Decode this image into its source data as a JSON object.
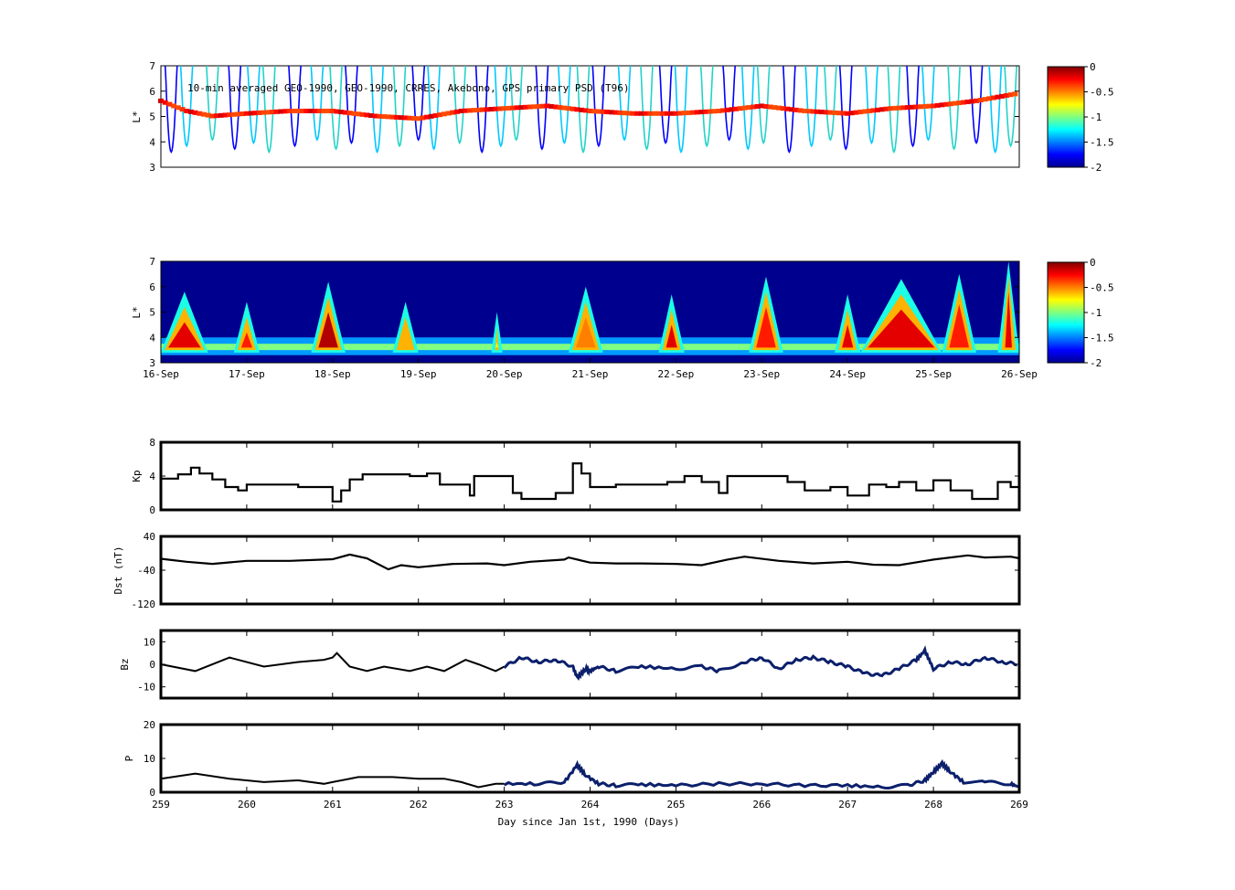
{
  "chart_data": [
    {
      "type": "heatmap",
      "title": "10-min averaged GEO-1990, GEO-1990, CRRES, Akebono, GPS  primary PSD (T96)",
      "ylabel": "L*",
      "ylim": [
        3,
        7
      ],
      "yticks": [
        "3",
        "4",
        "5",
        "6",
        "7"
      ],
      "colorbar": {
        "range": [
          -2,
          0
        ],
        "ticks": [
          "0",
          "-0.5",
          "-1",
          "-1.5",
          "-2"
        ]
      },
      "xlim": [
        259,
        269
      ],
      "tracks": [
        {
          "name": "band",
          "points": [
            [
              259,
              5.6
            ],
            [
              259.3,
              5.2
            ],
            [
              259.6,
              5.0
            ],
            [
              260,
              5.1
            ],
            [
              260.5,
              5.2
            ],
            [
              261,
              5.2
            ],
            [
              261.5,
              5.0
            ],
            [
              262,
              4.9
            ],
            [
              262.5,
              5.2
            ],
            [
              263,
              5.3
            ],
            [
              263.5,
              5.4
            ],
            [
              264,
              5.2
            ],
            [
              264.5,
              5.1
            ],
            [
              265,
              5.1
            ],
            [
              265.5,
              5.2
            ],
            [
              266,
              5.4
            ],
            [
              266.5,
              5.2
            ],
            [
              267,
              5.1
            ],
            [
              267.5,
              5.3
            ],
            [
              268,
              5.4
            ],
            [
              268.5,
              5.6
            ],
            [
              269,
              5.9
            ]
          ]
        }
      ]
    },
    {
      "type": "heatmap",
      "ylabel": "L*",
      "ylim": [
        3,
        7
      ],
      "yticks": [
        "3",
        "4",
        "5",
        "6",
        "7"
      ],
      "colorbar": {
        "range": [
          -2,
          0
        ],
        "ticks": [
          "0",
          "-0.5",
          "-1",
          "-1.5",
          "-2"
        ]
      },
      "xlim": [
        259,
        269
      ],
      "xticklabels": [
        "16-Sep",
        "17-Sep",
        "18-Sep",
        "19-Sep",
        "20-Sep",
        "21-Sep",
        "22-Sep",
        "23-Sep",
        "24-Sep",
        "25-Sep",
        "26-Sep"
      ],
      "hot_regions": [
        {
          "x": [
            259.0,
            259.55
          ],
          "peak": 5.8,
          "value": -0.2
        },
        {
          "x": [
            259.85,
            260.15
          ],
          "peak": 5.4,
          "value": -0.3
        },
        {
          "x": [
            260.75,
            261.15
          ],
          "peak": 6.2,
          "value": -0.1
        },
        {
          "x": [
            261.7,
            262.0
          ],
          "peak": 5.4,
          "value": -0.6
        },
        {
          "x": [
            262.85,
            262.98
          ],
          "peak": 5.0,
          "value": -0.8
        },
        {
          "x": [
            263.75,
            264.15
          ],
          "peak": 6.0,
          "value": -0.5
        },
        {
          "x": [
            264.8,
            265.1
          ],
          "peak": 5.7,
          "value": -0.2
        },
        {
          "x": [
            265.85,
            266.25
          ],
          "peak": 6.4,
          "value": -0.3
        },
        {
          "x": [
            266.85,
            267.15
          ],
          "peak": 5.7,
          "value": -0.2
        },
        {
          "x": [
            267.15,
            268.1
          ],
          "peak": 6.3,
          "value": -0.2
        },
        {
          "x": [
            268.1,
            268.5
          ],
          "peak": 6.5,
          "value": -0.3
        },
        {
          "x": [
            268.75,
            269.0
          ],
          "peak": 7.0,
          "value": -0.2
        }
      ]
    },
    {
      "type": "line",
      "ylabel": "Kp",
      "ylim": [
        0,
        8
      ],
      "yticks": [
        "0",
        "4",
        "8"
      ],
      "x": [
        259,
        259.2,
        259.35,
        259.45,
        259.6,
        259.75,
        259.9,
        260.0,
        260.3,
        260.6,
        260.9,
        261.0,
        261.1,
        261.2,
        261.35,
        261.6,
        261.9,
        262.1,
        262.25,
        262.4,
        262.6,
        262.65,
        262.85,
        263.0,
        263.1,
        263.2,
        263.4,
        263.6,
        263.8,
        263.9,
        264.0,
        264.1,
        264.3,
        264.6,
        264.9,
        265.1,
        265.3,
        265.5,
        265.6,
        265.8,
        266.0,
        266.3,
        266.5,
        266.8,
        267.0,
        267.15,
        267.25,
        267.45,
        267.6,
        267.8,
        268.0,
        268.2,
        268.45,
        268.6,
        268.75,
        268.9,
        269
      ],
      "values": [
        3.7,
        4.2,
        5.0,
        4.3,
        3.6,
        2.7,
        2.3,
        3.0,
        3.0,
        2.7,
        2.7,
        1.0,
        2.3,
        3.6,
        4.2,
        4.2,
        4.0,
        4.3,
        3.0,
        3.0,
        1.7,
        4.0,
        4.0,
        4.0,
        2.0,
        1.3,
        1.3,
        2.0,
        5.5,
        4.3,
        2.7,
        2.7,
        3.0,
        3.0,
        3.3,
        4.0,
        3.3,
        2.0,
        4.0,
        4.0,
        4.0,
        3.3,
        2.3,
        2.7,
        1.7,
        1.7,
        3.0,
        2.7,
        3.3,
        2.3,
        3.5,
        2.3,
        1.3,
        1.3,
        3.3,
        2.7,
        2.7
      ]
    },
    {
      "type": "line",
      "ylabel": "Dst (nT)",
      "ylim": [
        -120,
        40
      ],
      "yticks": [
        "-120",
        "-40",
        "40"
      ],
      "x": [
        259,
        259.3,
        259.6,
        260.0,
        260.5,
        261.0,
        261.2,
        261.4,
        261.65,
        261.8,
        262.0,
        262.4,
        262.8,
        263.0,
        263.3,
        263.7,
        263.75,
        264.0,
        264.3,
        264.6,
        265.0,
        265.3,
        265.6,
        265.8,
        266.2,
        266.6,
        267.0,
        267.3,
        267.6,
        268.0,
        268.4,
        268.6,
        268.9,
        269
      ],
      "values": [
        -13,
        -20,
        -25,
        -18,
        -18,
        -14,
        -3,
        -12,
        -38,
        -28,
        -33,
        -25,
        -24,
        -28,
        -20,
        -15,
        -10,
        -22,
        -24,
        -24,
        -25,
        -28,
        -15,
        -8,
        -18,
        -24,
        -20,
        -27,
        -28,
        -15,
        -5,
        -10,
        -8,
        -12
      ]
    },
    {
      "type": "line",
      "ylabel": "Bz",
      "ylim": [
        -15,
        15
      ],
      "yticks": [
        "-10",
        "0",
        "10"
      ],
      "x": [
        259,
        259.4,
        259.8,
        260.2,
        260.6,
        260.9,
        261.0,
        261.05,
        261.2,
        261.4,
        261.6,
        261.9,
        262.1,
        262.3,
        262.55,
        262.7,
        262.9,
        263.0,
        263.2,
        263.4,
        263.6,
        263.8,
        263.85,
        263.95,
        264.0,
        264.1,
        264.3,
        264.6,
        265.0,
        265.3,
        265.5,
        265.8,
        266.0,
        266.2,
        266.4,
        266.6,
        266.8,
        267.0,
        267.2,
        267.4,
        267.6,
        267.8,
        267.9,
        268.0,
        268.2,
        268.4,
        268.6,
        268.8,
        269
      ],
      "values": [
        0,
        -3,
        3,
        -1,
        1,
        2,
        3,
        5,
        -1,
        -3,
        -1,
        -3,
        -1,
        -3,
        2,
        0,
        -3,
        -1,
        3,
        1,
        2,
        -1,
        -6,
        -2,
        -3,
        -1,
        -3,
        -1,
        -2,
        -1,
        -3,
        1,
        3,
        -2,
        2,
        3,
        1,
        -1,
        -4,
        -5,
        -2,
        2,
        6,
        -2,
        1,
        0,
        3,
        1,
        0
      ]
    },
    {
      "type": "line",
      "ylabel": "P",
      "ylim": [
        0,
        20
      ],
      "yticks": [
        "0",
        "10",
        "20"
      ],
      "x": [
        259,
        259.4,
        259.8,
        260.2,
        260.6,
        260.9,
        261.0,
        261.3,
        261.7,
        262.0,
        262.3,
        262.5,
        262.7,
        262.9,
        263.0,
        263.4,
        263.7,
        263.85,
        263.95,
        264.1,
        264.3,
        264.6,
        265.0,
        265.5,
        266.0,
        266.5,
        267.0,
        267.4,
        267.7,
        267.9,
        268.0,
        268.1,
        268.2,
        268.35,
        268.6,
        268.9,
        269
      ],
      "values": [
        4,
        5.5,
        4,
        3,
        3.5,
        2.5,
        3,
        4.5,
        4.5,
        4,
        4,
        3,
        1.5,
        2.5,
        2.5,
        2.5,
        3,
        8,
        5,
        2.5,
        2,
        2.3,
        2,
        2.5,
        2.5,
        2,
        2,
        1.5,
        2,
        3.5,
        6,
        8.5,
        6,
        3,
        3,
        2.5,
        1.5
      ]
    }
  ],
  "xaxis": {
    "ticks": [
      "259",
      "260",
      "261",
      "262",
      "263",
      "264",
      "265",
      "266",
      "267",
      "268",
      "269"
    ],
    "label": "Day since Jan 1st, 1990 (Days)"
  }
}
